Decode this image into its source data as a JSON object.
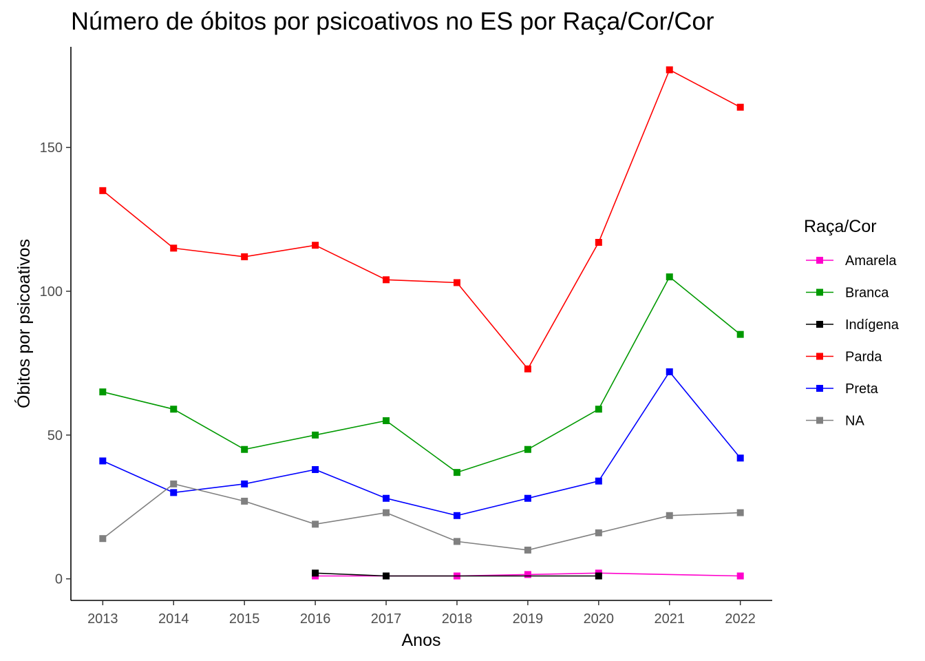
{
  "chart_data": {
    "type": "line",
    "title": "Número de óbitos por psicoativos no ES por Raça/Cor/Cor",
    "xlabel": "Anos",
    "ylabel": "Óbitos por psicoativos",
    "x": [
      2013,
      2014,
      2015,
      2016,
      2017,
      2018,
      2019,
      2020,
      2021,
      2022
    ],
    "x_tick_labels": [
      "2013",
      "2014",
      "2015",
      "2016",
      "2017",
      "2018",
      "2019",
      "2020",
      "2021",
      "2022"
    ],
    "y_ticks": [
      0,
      50,
      100,
      150
    ],
    "y_tick_labels": [
      "0",
      "50",
      "100",
      "150"
    ],
    "ylim": [
      -7.5,
      185
    ],
    "xlim": [
      2012.55,
      2022.45
    ],
    "grid": false,
    "legend_title": "Raça/Cor",
    "legend_position": "right",
    "series": [
      {
        "name": "Amarela",
        "color": "#FF00CC",
        "points": [
          [
            2016,
            1
          ],
          [
            2017,
            1
          ],
          [
            2018,
            1
          ],
          [
            2019,
            1.5
          ],
          [
            2020,
            2
          ],
          [
            2022,
            1
          ]
        ]
      },
      {
        "name": "Branca",
        "color": "#009900",
        "points": [
          [
            2013,
            65
          ],
          [
            2014,
            59
          ],
          [
            2015,
            45
          ],
          [
            2016,
            50
          ],
          [
            2017,
            55
          ],
          [
            2018,
            37
          ],
          [
            2019,
            45
          ],
          [
            2020,
            59
          ],
          [
            2021,
            105
          ],
          [
            2022,
            85
          ]
        ]
      },
      {
        "name": "Indígena",
        "color": "#000000",
        "points": [
          [
            2016,
            2
          ],
          [
            2017,
            1
          ],
          [
            2020,
            1
          ]
        ]
      },
      {
        "name": "Parda",
        "color": "#FF0000",
        "points": [
          [
            2013,
            135
          ],
          [
            2014,
            115
          ],
          [
            2015,
            112
          ],
          [
            2016,
            116
          ],
          [
            2017,
            104
          ],
          [
            2018,
            103
          ],
          [
            2019,
            73
          ],
          [
            2020,
            117
          ],
          [
            2021,
            177
          ],
          [
            2022,
            164
          ]
        ]
      },
      {
        "name": "Preta",
        "color": "#0000FF",
        "points": [
          [
            2013,
            41
          ],
          [
            2014,
            30
          ],
          [
            2015,
            33
          ],
          [
            2016,
            38
          ],
          [
            2017,
            28
          ],
          [
            2018,
            22
          ],
          [
            2019,
            28
          ],
          [
            2020,
            34
          ],
          [
            2021,
            72
          ],
          [
            2022,
            42
          ]
        ]
      },
      {
        "name": "NA",
        "color": "#808080",
        "points": [
          [
            2013,
            14
          ],
          [
            2014,
            33
          ],
          [
            2015,
            27
          ],
          [
            2016,
            19
          ],
          [
            2017,
            23
          ],
          [
            2018,
            13
          ],
          [
            2019,
            10
          ],
          [
            2020,
            16
          ],
          [
            2021,
            22
          ],
          [
            2022,
            23
          ]
        ]
      }
    ]
  }
}
